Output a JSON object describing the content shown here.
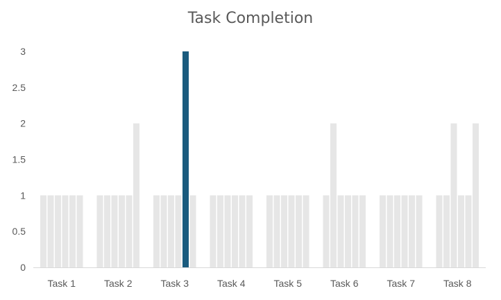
{
  "chart_data": {
    "type": "bar",
    "title": "Task Completion",
    "xlabel": "",
    "ylabel": "",
    "ylim": [
      0,
      3
    ],
    "yticks": [
      "0",
      "0.5",
      "1",
      "1.5",
      "2",
      "2.5",
      "3"
    ],
    "ytick_values": [
      0,
      0.5,
      1,
      1.5,
      2,
      2.5,
      3
    ],
    "categories": [
      "Task 1",
      "Task 2",
      "Task 3",
      "Task 4",
      "Task 5",
      "Task 6",
      "Task 7",
      "Task 8"
    ],
    "values": [
      [
        1,
        1,
        1,
        1,
        1,
        1
      ],
      [
        1,
        1,
        1,
        1,
        1,
        2
      ],
      [
        1,
        1,
        1,
        1,
        3,
        1
      ],
      [
        1,
        1,
        1,
        1,
        1,
        1
      ],
      [
        1,
        1,
        1,
        1,
        1,
        1
      ],
      [
        1,
        2,
        1,
        1,
        1,
        1
      ],
      [
        1,
        1,
        1,
        1,
        1,
        1
      ],
      [
        1,
        1,
        2,
        1,
        1,
        2
      ]
    ],
    "highlight": {
      "category_index": 2,
      "bar_index": 4
    },
    "grid": false,
    "legend": "none",
    "colors": {
      "default": "#e6e6e6",
      "highlight": "#1a5b7e",
      "text": "#595959"
    }
  }
}
